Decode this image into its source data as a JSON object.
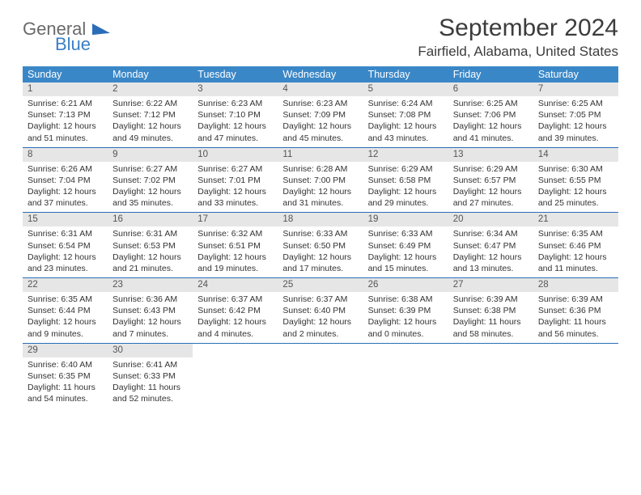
{
  "logo": {
    "word1": "General",
    "word2": "Blue"
  },
  "title": "September 2024",
  "location": "Fairfield, Alabama, United States",
  "colors": {
    "header_bg": "#3a87c7",
    "header_text": "#ffffff",
    "daynum_bg": "#e6e6e6",
    "rule": "#2a6db8",
    "logo_gray": "#6a6a6a",
    "logo_blue": "#3a7fc4"
  },
  "day_names": [
    "Sunday",
    "Monday",
    "Tuesday",
    "Wednesday",
    "Thursday",
    "Friday",
    "Saturday"
  ],
  "weeks": [
    [
      {
        "n": "1",
        "sr": "Sunrise: 6:21 AM",
        "ss": "Sunset: 7:13 PM",
        "d1": "Daylight: 12 hours",
        "d2": "and 51 minutes."
      },
      {
        "n": "2",
        "sr": "Sunrise: 6:22 AM",
        "ss": "Sunset: 7:12 PM",
        "d1": "Daylight: 12 hours",
        "d2": "and 49 minutes."
      },
      {
        "n": "3",
        "sr": "Sunrise: 6:23 AM",
        "ss": "Sunset: 7:10 PM",
        "d1": "Daylight: 12 hours",
        "d2": "and 47 minutes."
      },
      {
        "n": "4",
        "sr": "Sunrise: 6:23 AM",
        "ss": "Sunset: 7:09 PM",
        "d1": "Daylight: 12 hours",
        "d2": "and 45 minutes."
      },
      {
        "n": "5",
        "sr": "Sunrise: 6:24 AM",
        "ss": "Sunset: 7:08 PM",
        "d1": "Daylight: 12 hours",
        "d2": "and 43 minutes."
      },
      {
        "n": "6",
        "sr": "Sunrise: 6:25 AM",
        "ss": "Sunset: 7:06 PM",
        "d1": "Daylight: 12 hours",
        "d2": "and 41 minutes."
      },
      {
        "n": "7",
        "sr": "Sunrise: 6:25 AM",
        "ss": "Sunset: 7:05 PM",
        "d1": "Daylight: 12 hours",
        "d2": "and 39 minutes."
      }
    ],
    [
      {
        "n": "8",
        "sr": "Sunrise: 6:26 AM",
        "ss": "Sunset: 7:04 PM",
        "d1": "Daylight: 12 hours",
        "d2": "and 37 minutes."
      },
      {
        "n": "9",
        "sr": "Sunrise: 6:27 AM",
        "ss": "Sunset: 7:02 PM",
        "d1": "Daylight: 12 hours",
        "d2": "and 35 minutes."
      },
      {
        "n": "10",
        "sr": "Sunrise: 6:27 AM",
        "ss": "Sunset: 7:01 PM",
        "d1": "Daylight: 12 hours",
        "d2": "and 33 minutes."
      },
      {
        "n": "11",
        "sr": "Sunrise: 6:28 AM",
        "ss": "Sunset: 7:00 PM",
        "d1": "Daylight: 12 hours",
        "d2": "and 31 minutes."
      },
      {
        "n": "12",
        "sr": "Sunrise: 6:29 AM",
        "ss": "Sunset: 6:58 PM",
        "d1": "Daylight: 12 hours",
        "d2": "and 29 minutes."
      },
      {
        "n": "13",
        "sr": "Sunrise: 6:29 AM",
        "ss": "Sunset: 6:57 PM",
        "d1": "Daylight: 12 hours",
        "d2": "and 27 minutes."
      },
      {
        "n": "14",
        "sr": "Sunrise: 6:30 AM",
        "ss": "Sunset: 6:55 PM",
        "d1": "Daylight: 12 hours",
        "d2": "and 25 minutes."
      }
    ],
    [
      {
        "n": "15",
        "sr": "Sunrise: 6:31 AM",
        "ss": "Sunset: 6:54 PM",
        "d1": "Daylight: 12 hours",
        "d2": "and 23 minutes."
      },
      {
        "n": "16",
        "sr": "Sunrise: 6:31 AM",
        "ss": "Sunset: 6:53 PM",
        "d1": "Daylight: 12 hours",
        "d2": "and 21 minutes."
      },
      {
        "n": "17",
        "sr": "Sunrise: 6:32 AM",
        "ss": "Sunset: 6:51 PM",
        "d1": "Daylight: 12 hours",
        "d2": "and 19 minutes."
      },
      {
        "n": "18",
        "sr": "Sunrise: 6:33 AM",
        "ss": "Sunset: 6:50 PM",
        "d1": "Daylight: 12 hours",
        "d2": "and 17 minutes."
      },
      {
        "n": "19",
        "sr": "Sunrise: 6:33 AM",
        "ss": "Sunset: 6:49 PM",
        "d1": "Daylight: 12 hours",
        "d2": "and 15 minutes."
      },
      {
        "n": "20",
        "sr": "Sunrise: 6:34 AM",
        "ss": "Sunset: 6:47 PM",
        "d1": "Daylight: 12 hours",
        "d2": "and 13 minutes."
      },
      {
        "n": "21",
        "sr": "Sunrise: 6:35 AM",
        "ss": "Sunset: 6:46 PM",
        "d1": "Daylight: 12 hours",
        "d2": "and 11 minutes."
      }
    ],
    [
      {
        "n": "22",
        "sr": "Sunrise: 6:35 AM",
        "ss": "Sunset: 6:44 PM",
        "d1": "Daylight: 12 hours",
        "d2": "and 9 minutes."
      },
      {
        "n": "23",
        "sr": "Sunrise: 6:36 AM",
        "ss": "Sunset: 6:43 PM",
        "d1": "Daylight: 12 hours",
        "d2": "and 7 minutes."
      },
      {
        "n": "24",
        "sr": "Sunrise: 6:37 AM",
        "ss": "Sunset: 6:42 PM",
        "d1": "Daylight: 12 hours",
        "d2": "and 4 minutes."
      },
      {
        "n": "25",
        "sr": "Sunrise: 6:37 AM",
        "ss": "Sunset: 6:40 PM",
        "d1": "Daylight: 12 hours",
        "d2": "and 2 minutes."
      },
      {
        "n": "26",
        "sr": "Sunrise: 6:38 AM",
        "ss": "Sunset: 6:39 PM",
        "d1": "Daylight: 12 hours",
        "d2": "and 0 minutes."
      },
      {
        "n": "27",
        "sr": "Sunrise: 6:39 AM",
        "ss": "Sunset: 6:38 PM",
        "d1": "Daylight: 11 hours",
        "d2": "and 58 minutes."
      },
      {
        "n": "28",
        "sr": "Sunrise: 6:39 AM",
        "ss": "Sunset: 6:36 PM",
        "d1": "Daylight: 11 hours",
        "d2": "and 56 minutes."
      }
    ],
    [
      {
        "n": "29",
        "sr": "Sunrise: 6:40 AM",
        "ss": "Sunset: 6:35 PM",
        "d1": "Daylight: 11 hours",
        "d2": "and 54 minutes."
      },
      {
        "n": "30",
        "sr": "Sunrise: 6:41 AM",
        "ss": "Sunset: 6:33 PM",
        "d1": "Daylight: 11 hours",
        "d2": "and 52 minutes."
      },
      {
        "n": "",
        "sr": "",
        "ss": "",
        "d1": "",
        "d2": ""
      },
      {
        "n": "",
        "sr": "",
        "ss": "",
        "d1": "",
        "d2": ""
      },
      {
        "n": "",
        "sr": "",
        "ss": "",
        "d1": "",
        "d2": ""
      },
      {
        "n": "",
        "sr": "",
        "ss": "",
        "d1": "",
        "d2": ""
      },
      {
        "n": "",
        "sr": "",
        "ss": "",
        "d1": "",
        "d2": ""
      }
    ]
  ]
}
